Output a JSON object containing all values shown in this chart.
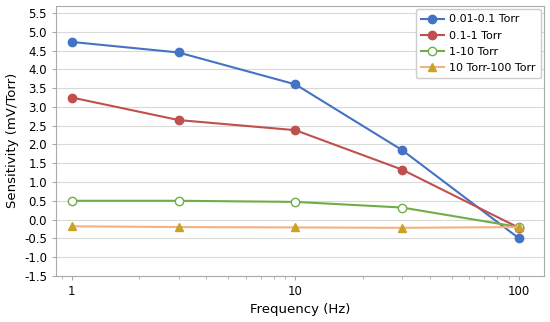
{
  "series": [
    {
      "label": "0.01-0.1 Torr",
      "x": [
        1,
        3,
        10,
        30,
        100
      ],
      "y": [
        4.73,
        4.45,
        3.6,
        1.85,
        -0.5
      ],
      "color": "#4472C4",
      "marker": "o",
      "marker_face": "#4472C4",
      "linestyle": "-",
      "linewidth": 1.5,
      "markersize": 6
    },
    {
      "label": "0.1-1 Torr",
      "x": [
        1,
        3,
        10,
        30,
        100
      ],
      "y": [
        3.25,
        2.65,
        2.38,
        1.33,
        -0.22
      ],
      "color": "#C0504D",
      "marker": "o",
      "marker_face": "#C0504D",
      "linestyle": "-",
      "linewidth": 1.5,
      "markersize": 6
    },
    {
      "label": "1-10 Torr",
      "x": [
        1,
        3,
        10,
        30,
        100
      ],
      "y": [
        0.5,
        0.5,
        0.47,
        0.32,
        -0.2
      ],
      "color": "#70AD47",
      "marker": "o",
      "marker_face": "white",
      "linestyle": "-",
      "linewidth": 1.5,
      "markersize": 6
    },
    {
      "label": "10 Torr-100 Torr",
      "x": [
        1,
        3,
        10,
        30,
        100
      ],
      "y": [
        -0.18,
        -0.2,
        -0.21,
        -0.22,
        -0.2
      ],
      "color": "#F4B183",
      "marker": "^",
      "marker_face": "#C9A227",
      "marker_edge": "#C9A227",
      "linestyle": "-",
      "linewidth": 1.5,
      "markersize": 6
    }
  ],
  "xlabel": "Frequency (Hz)",
  "ylabel": "Sensitivity (mV/Torr)",
  "xlim": [
    0.85,
    130
  ],
  "ylim": [
    -1.5,
    5.7
  ],
  "yticks": [
    -1.5,
    -1.0,
    -0.5,
    0.0,
    0.5,
    1.0,
    1.5,
    2.0,
    2.5,
    3.0,
    3.5,
    4.0,
    4.5,
    5.0,
    5.5
  ],
  "xticks": [
    1,
    10,
    100
  ],
  "background_color": "#FFFFFF",
  "grid_color": "#D9D9D9",
  "legend_loc": "upper right",
  "legend_fontsize": 8.0
}
